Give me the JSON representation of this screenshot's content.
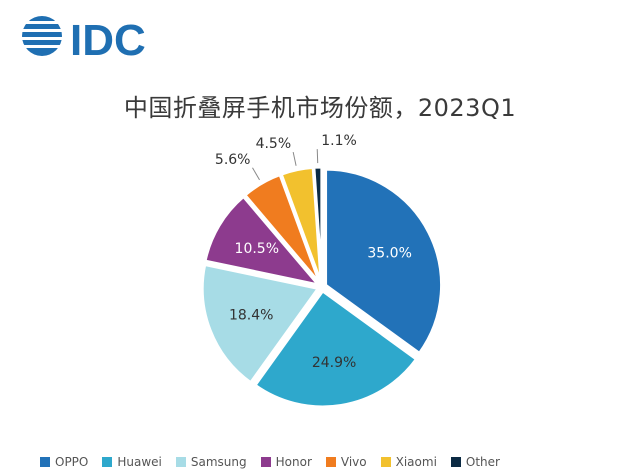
{
  "logo": {
    "text": "IDC"
  },
  "chart_data": {
    "type": "pie",
    "title": "中国折叠屏手机市场份额，2023Q1",
    "values": [
      35.0,
      24.9,
      18.4,
      10.5,
      5.6,
      4.5,
      1.1
    ],
    "labels": [
      "35.0%",
      "24.9%",
      "18.4%",
      "10.5%",
      "5.6%",
      "4.5%",
      "1.1%"
    ],
    "colors": [
      "#2272b8",
      "#2ea8cc",
      "#a7dce6",
      "#8d3b8e",
      "#f07c1f",
      "#f2c12e",
      "#0b2a43"
    ],
    "legend": [
      "OPPO",
      "Huawei",
      "Samsung",
      "Honor",
      "Vivo",
      "Xiaomi",
      "Other"
    ],
    "legend_position": "bottom"
  }
}
